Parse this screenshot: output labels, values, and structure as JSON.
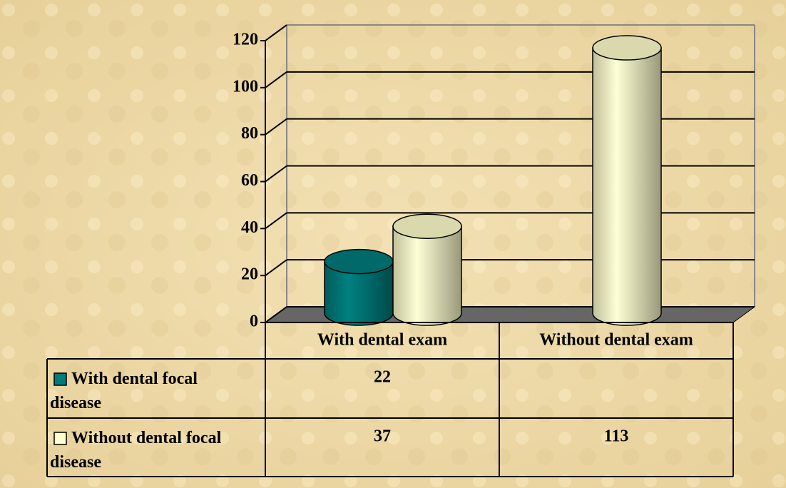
{
  "chart_data": {
    "type": "bar",
    "categories": [
      "With dental exam",
      "Without dental exam"
    ],
    "series": [
      {
        "name": "With dental focal disease",
        "color": "#007b7b",
        "values": [
          22,
          null
        ]
      },
      {
        "name": "Without dental focal disease",
        "color": "#ffffcc",
        "values": [
          37,
          113
        ]
      }
    ],
    "ylim": [
      0,
      120
    ],
    "yticks": [
      0,
      20,
      40,
      60,
      80,
      100,
      120
    ],
    "grid": true
  }
}
